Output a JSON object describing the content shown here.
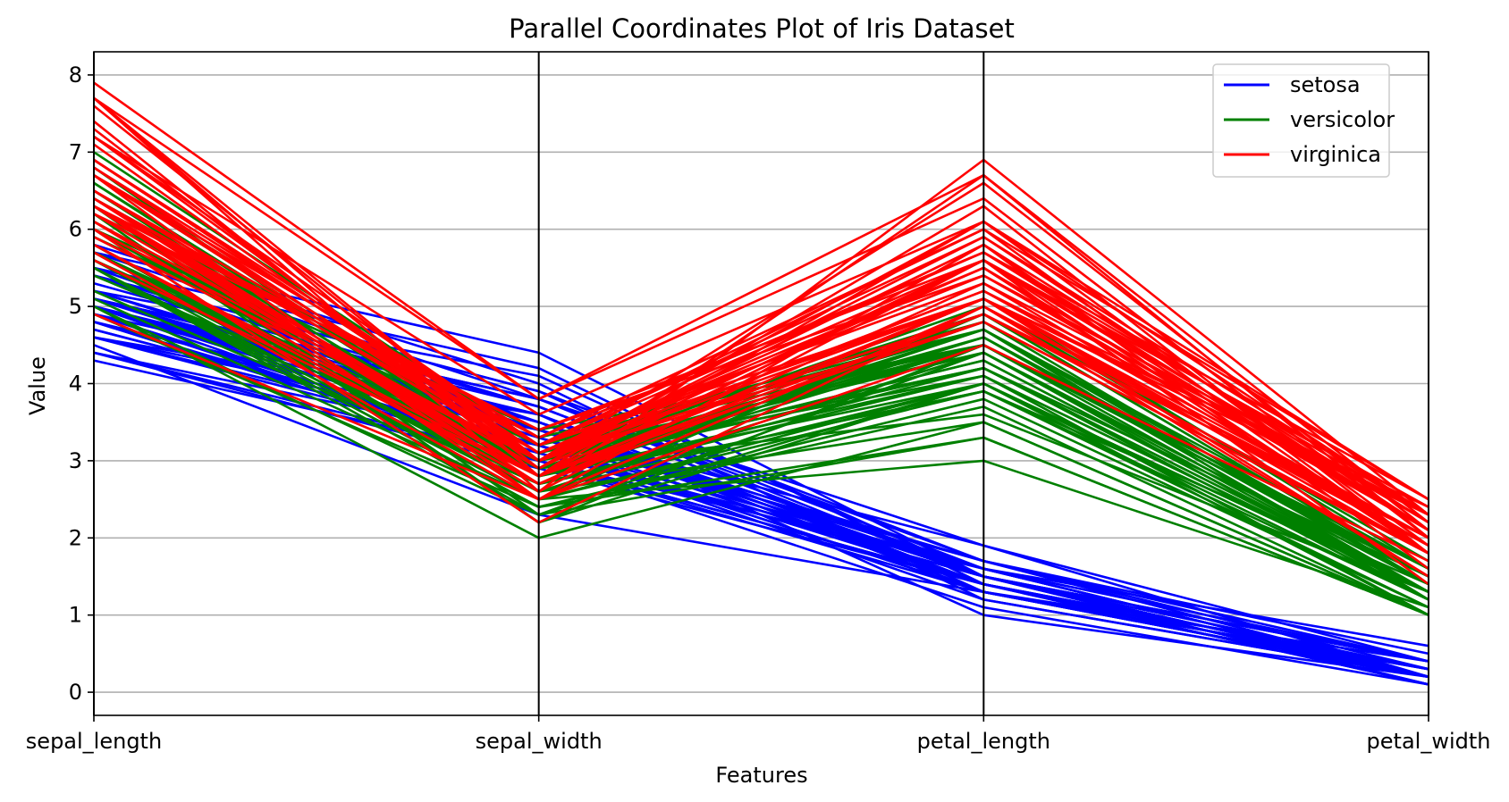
{
  "chart_data": {
    "type": "line",
    "subtype": "parallel-coordinates",
    "title": "Parallel Coordinates Plot of Iris Dataset",
    "xlabel": "Features",
    "ylabel": "Value",
    "categories": [
      "sepal_length",
      "sepal_width",
      "petal_length",
      "petal_width"
    ],
    "ylim": [
      -0.3,
      8.3
    ],
    "yticks": [
      0,
      1,
      2,
      3,
      4,
      5,
      6,
      7,
      8
    ],
    "grid": true,
    "legend_position": "top-right",
    "series": [
      {
        "name": "setosa",
        "color": "#0000ff",
        "lines": [
          [
            5.1,
            3.5,
            1.4,
            0.2
          ],
          [
            4.9,
            3.0,
            1.4,
            0.2
          ],
          [
            4.7,
            3.2,
            1.3,
            0.2
          ],
          [
            4.6,
            3.1,
            1.5,
            0.2
          ],
          [
            5.0,
            3.6,
            1.4,
            0.2
          ],
          [
            5.4,
            3.9,
            1.7,
            0.4
          ],
          [
            4.6,
            3.4,
            1.4,
            0.3
          ],
          [
            5.0,
            3.4,
            1.5,
            0.2
          ],
          [
            4.4,
            2.9,
            1.4,
            0.2
          ],
          [
            4.9,
            3.1,
            1.5,
            0.1
          ],
          [
            5.4,
            3.7,
            1.5,
            0.2
          ],
          [
            4.8,
            3.4,
            1.6,
            0.2
          ],
          [
            4.8,
            3.0,
            1.4,
            0.1
          ],
          [
            4.3,
            3.0,
            1.1,
            0.1
          ],
          [
            5.8,
            4.0,
            1.2,
            0.2
          ],
          [
            5.7,
            4.4,
            1.5,
            0.4
          ],
          [
            5.4,
            3.9,
            1.3,
            0.4
          ],
          [
            5.1,
            3.5,
            1.4,
            0.3
          ],
          [
            5.7,
            3.8,
            1.7,
            0.3
          ],
          [
            5.1,
            3.8,
            1.5,
            0.3
          ],
          [
            5.4,
            3.4,
            1.7,
            0.2
          ],
          [
            5.1,
            3.7,
            1.5,
            0.4
          ],
          [
            4.6,
            3.6,
            1.0,
            0.2
          ],
          [
            5.1,
            3.3,
            1.7,
            0.5
          ],
          [
            4.8,
            3.4,
            1.9,
            0.2
          ],
          [
            5.0,
            3.0,
            1.6,
            0.2
          ],
          [
            5.0,
            3.4,
            1.6,
            0.4
          ],
          [
            5.2,
            3.5,
            1.5,
            0.2
          ],
          [
            5.2,
            3.4,
            1.4,
            0.2
          ],
          [
            4.7,
            3.2,
            1.6,
            0.2
          ],
          [
            4.8,
            3.1,
            1.6,
            0.2
          ],
          [
            5.4,
            3.4,
            1.5,
            0.4
          ],
          [
            5.2,
            4.1,
            1.5,
            0.1
          ],
          [
            5.5,
            4.2,
            1.4,
            0.2
          ],
          [
            4.9,
            3.1,
            1.5,
            0.2
          ],
          [
            5.0,
            3.2,
            1.2,
            0.2
          ],
          [
            5.5,
            3.5,
            1.3,
            0.2
          ],
          [
            4.9,
            3.6,
            1.4,
            0.1
          ],
          [
            4.4,
            3.0,
            1.3,
            0.2
          ],
          [
            5.1,
            3.4,
            1.5,
            0.2
          ],
          [
            5.0,
            3.5,
            1.3,
            0.3
          ],
          [
            4.5,
            2.3,
            1.3,
            0.3
          ],
          [
            4.4,
            3.2,
            1.3,
            0.2
          ],
          [
            5.0,
            3.5,
            1.6,
            0.6
          ],
          [
            5.1,
            3.8,
            1.9,
            0.4
          ],
          [
            4.8,
            3.0,
            1.4,
            0.3
          ],
          [
            5.1,
            3.8,
            1.6,
            0.2
          ],
          [
            4.6,
            3.2,
            1.4,
            0.2
          ],
          [
            5.3,
            3.7,
            1.5,
            0.2
          ],
          [
            5.0,
            3.3,
            1.4,
            0.2
          ]
        ]
      },
      {
        "name": "versicolor",
        "color": "#008000",
        "lines": [
          [
            7.0,
            3.2,
            4.7,
            1.4
          ],
          [
            6.4,
            3.2,
            4.5,
            1.5
          ],
          [
            6.9,
            3.1,
            4.9,
            1.5
          ],
          [
            5.5,
            2.3,
            4.0,
            1.3
          ],
          [
            6.5,
            2.8,
            4.6,
            1.5
          ],
          [
            5.7,
            2.8,
            4.5,
            1.3
          ],
          [
            6.3,
            3.3,
            4.7,
            1.6
          ],
          [
            4.9,
            2.4,
            3.3,
            1.0
          ],
          [
            6.6,
            2.9,
            4.6,
            1.3
          ],
          [
            5.2,
            2.7,
            3.9,
            1.4
          ],
          [
            5.0,
            2.0,
            3.5,
            1.0
          ],
          [
            5.9,
            3.0,
            4.2,
            1.5
          ],
          [
            6.0,
            2.2,
            4.0,
            1.0
          ],
          [
            6.1,
            2.9,
            4.7,
            1.4
          ],
          [
            5.6,
            2.9,
            3.6,
            1.3
          ],
          [
            6.7,
            3.1,
            4.4,
            1.4
          ],
          [
            5.6,
            3.0,
            4.5,
            1.5
          ],
          [
            5.8,
            2.7,
            4.1,
            1.0
          ],
          [
            6.2,
            2.2,
            4.5,
            1.5
          ],
          [
            5.6,
            2.5,
            3.9,
            1.1
          ],
          [
            5.9,
            3.2,
            4.8,
            1.8
          ],
          [
            6.1,
            2.8,
            4.0,
            1.3
          ],
          [
            6.3,
            2.5,
            4.9,
            1.5
          ],
          [
            6.1,
            2.8,
            4.7,
            1.2
          ],
          [
            6.4,
            2.9,
            4.3,
            1.3
          ],
          [
            6.6,
            3.0,
            4.4,
            1.4
          ],
          [
            6.8,
            2.8,
            4.8,
            1.4
          ],
          [
            6.7,
            3.0,
            5.0,
            1.7
          ],
          [
            6.0,
            2.9,
            4.5,
            1.5
          ],
          [
            5.7,
            2.6,
            3.5,
            1.0
          ],
          [
            5.5,
            2.4,
            3.8,
            1.1
          ],
          [
            5.5,
            2.4,
            3.7,
            1.0
          ],
          [
            5.8,
            2.7,
            3.9,
            1.2
          ],
          [
            6.0,
            2.7,
            5.1,
            1.6
          ],
          [
            5.4,
            3.0,
            4.5,
            1.5
          ],
          [
            6.0,
            3.4,
            4.5,
            1.6
          ],
          [
            6.7,
            3.1,
            4.7,
            1.5
          ],
          [
            6.3,
            2.3,
            4.4,
            1.3
          ],
          [
            5.6,
            3.0,
            4.1,
            1.3
          ],
          [
            5.5,
            2.5,
            4.0,
            1.3
          ],
          [
            5.5,
            2.6,
            4.4,
            1.2
          ],
          [
            6.1,
            3.0,
            4.6,
            1.4
          ],
          [
            5.8,
            2.6,
            4.0,
            1.2
          ],
          [
            5.0,
            2.3,
            3.3,
            1.0
          ],
          [
            5.6,
            2.7,
            4.2,
            1.3
          ],
          [
            5.7,
            3.0,
            4.2,
            1.2
          ],
          [
            5.7,
            2.9,
            4.2,
            1.3
          ],
          [
            6.2,
            2.9,
            4.3,
            1.3
          ],
          [
            5.1,
            2.5,
            3.0,
            1.1
          ],
          [
            5.7,
            2.8,
            4.1,
            1.3
          ]
        ]
      },
      {
        "name": "virginica",
        "color": "#ff0000",
        "lines": [
          [
            6.3,
            3.3,
            6.0,
            2.5
          ],
          [
            5.8,
            2.7,
            5.1,
            1.9
          ],
          [
            7.1,
            3.0,
            5.9,
            2.1
          ],
          [
            6.3,
            2.9,
            5.6,
            1.8
          ],
          [
            6.5,
            3.0,
            5.8,
            2.2
          ],
          [
            7.6,
            3.0,
            6.6,
            2.1
          ],
          [
            4.9,
            2.5,
            4.5,
            1.7
          ],
          [
            7.3,
            2.9,
            6.3,
            1.8
          ],
          [
            6.7,
            2.5,
            5.8,
            1.8
          ],
          [
            7.2,
            3.6,
            6.1,
            2.5
          ],
          [
            6.5,
            3.2,
            5.1,
            2.0
          ],
          [
            6.4,
            2.7,
            5.3,
            1.9
          ],
          [
            6.8,
            3.0,
            5.5,
            2.1
          ],
          [
            5.7,
            2.5,
            5.0,
            2.0
          ],
          [
            5.8,
            2.8,
            5.1,
            2.4
          ],
          [
            6.4,
            3.2,
            5.3,
            2.3
          ],
          [
            6.5,
            3.0,
            5.5,
            1.8
          ],
          [
            7.7,
            3.8,
            6.7,
            2.2
          ],
          [
            7.7,
            2.6,
            6.9,
            2.3
          ],
          [
            6.0,
            2.2,
            5.0,
            1.5
          ],
          [
            6.9,
            3.2,
            5.7,
            2.3
          ],
          [
            5.6,
            2.8,
            4.9,
            2.0
          ],
          [
            7.7,
            2.8,
            6.7,
            2.0
          ],
          [
            6.3,
            2.7,
            4.9,
            1.8
          ],
          [
            6.7,
            3.3,
            5.7,
            2.1
          ],
          [
            7.2,
            3.2,
            6.0,
            1.8
          ],
          [
            6.2,
            2.8,
            4.8,
            1.8
          ],
          [
            6.1,
            3.0,
            4.9,
            1.8
          ],
          [
            6.4,
            2.8,
            5.6,
            2.1
          ],
          [
            7.2,
            3.0,
            5.8,
            1.6
          ],
          [
            7.4,
            2.8,
            6.1,
            1.9
          ],
          [
            7.9,
            3.8,
            6.4,
            2.0
          ],
          [
            6.4,
            2.8,
            5.6,
            2.2
          ],
          [
            6.3,
            2.8,
            5.1,
            1.5
          ],
          [
            6.1,
            2.6,
            5.6,
            1.4
          ],
          [
            7.7,
            3.0,
            6.1,
            2.3
          ],
          [
            6.3,
            3.4,
            5.6,
            2.4
          ],
          [
            6.4,
            3.1,
            5.5,
            1.8
          ],
          [
            6.0,
            3.0,
            4.8,
            1.8
          ],
          [
            6.9,
            3.1,
            5.4,
            2.1
          ],
          [
            6.7,
            3.1,
            5.6,
            2.4
          ],
          [
            6.9,
            3.1,
            5.1,
            2.3
          ],
          [
            5.8,
            2.7,
            5.1,
            1.9
          ],
          [
            6.8,
            3.2,
            5.9,
            2.3
          ],
          [
            6.7,
            3.3,
            5.7,
            2.5
          ],
          [
            6.7,
            3.0,
            5.2,
            2.3
          ],
          [
            6.3,
            2.5,
            5.0,
            1.9
          ],
          [
            6.5,
            3.0,
            5.2,
            2.0
          ],
          [
            6.2,
            3.4,
            5.4,
            2.3
          ],
          [
            5.9,
            3.0,
            5.1,
            1.8
          ]
        ]
      }
    ]
  }
}
